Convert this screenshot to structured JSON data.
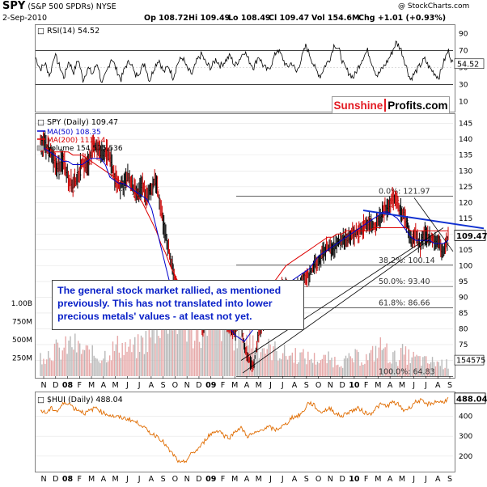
{
  "header": {
    "symbol": "SPY",
    "desc": "(S&P 500 SPDRs) NYSE",
    "date": "2-Sep-2010",
    "watermark": "@ StockCharts.com",
    "op": "Op 108.72",
    "hi": "Hi 109.49",
    "lo": "Lo 108.49",
    "cl": "Cl 109.47",
    "vol": "Vol 154.6M",
    "chg": "Chg +1.01 (+0.93%)"
  },
  "logo": {
    "part1": "Sunshine",
    "part2": "Profits.com"
  },
  "callout": {
    "line1": "The general stock market rallied, as mentioned",
    "line2": "previously. This has not translated into lower",
    "line3": "precious metals' values - at least not yet."
  },
  "colors": {
    "price_up": "#000000",
    "price_down": "#cc0000",
    "ma50": "#0000cc",
    "ma200": "#dd0000",
    "volume": "#e8b0b0",
    "hui": "#e06c00",
    "trend_blue": "#1030d0"
  },
  "chart_data": [
    {
      "type": "line",
      "name": "rsi_panel",
      "title": "RSI(14) 54.52",
      "last_value_label": "54.52",
      "y_ticks": [
        10,
        30,
        50,
        70,
        90
      ],
      "ylim": [
        0,
        100
      ],
      "guide_lines": [
        30,
        70
      ],
      "x_count": 460,
      "series": [
        {
          "name": "RSI(14)",
          "values": [
            62,
            48,
            55,
            40,
            66,
            52,
            38,
            58,
            44,
            60,
            35,
            50,
            42,
            56,
            30,
            45,
            62,
            48,
            36,
            52,
            58,
            40,
            46,
            55,
            34,
            50,
            60,
            44,
            52,
            38,
            56,
            62,
            48,
            42,
            58,
            66,
            54,
            50,
            60,
            52,
            58,
            64,
            52,
            60,
            70,
            58,
            50,
            64,
            52,
            46,
            58,
            72,
            62,
            50,
            56,
            44,
            60,
            76,
            62,
            48,
            40,
            52,
            60,
            78,
            70,
            52,
            44,
            38,
            50,
            62,
            70,
            54,
            40,
            48,
            56,
            66,
            80,
            72,
            54,
            36,
            44,
            52,
            60,
            50,
            44,
            38,
            56,
            70,
            54
          ]
        }
      ]
    },
    {
      "type": "line",
      "name": "spy_panel",
      "title": "SPY (Daily) 109.47",
      "legend": [
        "MA(50) 108.35",
        "MA(200) 111.14",
        "Volume 154,575,536"
      ],
      "last_price_label": "109.47",
      "y_ticks": [
        70,
        75,
        80,
        85,
        90,
        95,
        100,
        105,
        110,
        115,
        120,
        125,
        130,
        135,
        140,
        145
      ],
      "ylim": [
        65,
        148
      ],
      "volume_ticks": [
        "250M",
        "500M",
        "750M",
        "1.00B"
      ],
      "volume_last_label": "154575",
      "fib_levels": [
        {
          "label": "0.0%: 121.97",
          "value": 121.97
        },
        {
          "label": "38.2%: 100.14",
          "value": 100.14
        },
        {
          "label": "50.0%: 93.40",
          "value": 93.4
        },
        {
          "label": "61.8%: 86.66",
          "value": 86.66
        },
        {
          "label": "100.0%: 64.83",
          "value": 64.83
        }
      ],
      "x_labels": [
        "N",
        "D",
        "08",
        "F",
        "M",
        "A",
        "M",
        "J",
        "J",
        "A",
        "S",
        "O",
        "N",
        "D",
        "09",
        "F",
        "M",
        "A",
        "M",
        "J",
        "J",
        "A",
        "S",
        "O",
        "N",
        "D",
        "10",
        "F",
        "M",
        "A",
        "M",
        "J",
        "J",
        "A",
        "S"
      ],
      "close": [
        140,
        138,
        136,
        132,
        131,
        134,
        128,
        125,
        128,
        133,
        131,
        136,
        138,
        135,
        136,
        134,
        128,
        125,
        126,
        128,
        124,
        122,
        126,
        121,
        125,
        127,
        117,
        110,
        103,
        96,
        90,
        86,
        85,
        90,
        82,
        80,
        84,
        87,
        90,
        88,
        82,
        80,
        78,
        85,
        74,
        70,
        68,
        78,
        82,
        84,
        86,
        90,
        93,
        94,
        92,
        93,
        94,
        96,
        97,
        100,
        101,
        104,
        106,
        105,
        107,
        108,
        109,
        110,
        110,
        111,
        113,
        114,
        112,
        115,
        117,
        119,
        121,
        120,
        117,
        114,
        108,
        110,
        106,
        110,
        109,
        108,
        107,
        104,
        109
      ],
      "ma50": [
        138,
        137,
        136,
        135,
        134,
        133,
        133,
        132,
        132,
        132,
        133,
        134,
        134,
        134,
        132,
        128,
        127,
        126,
        126,
        125,
        124,
        123,
        122,
        121,
        118,
        112,
        106,
        100,
        94,
        89,
        87,
        86,
        86,
        86,
        85,
        84,
        84,
        84,
        84,
        83,
        82,
        80,
        78,
        77,
        76,
        78,
        80,
        84,
        88,
        90,
        92,
        93,
        94,
        94,
        95,
        96,
        97,
        98,
        99,
        101,
        103,
        104,
        105,
        106,
        107,
        108,
        109,
        110,
        111,
        112,
        113,
        114,
        115,
        116,
        117,
        117,
        116,
        115,
        113,
        111,
        109,
        108,
        108,
        108,
        108,
        107,
        107,
        107,
        108
      ],
      "ma200": [
        136,
        137,
        137,
        136,
        136,
        136,
        136,
        135,
        135,
        135,
        134,
        133,
        132,
        131,
        130,
        129,
        128,
        127,
        126,
        125,
        124,
        122,
        120,
        117,
        114,
        111,
        107,
        104,
        100,
        97,
        94,
        91,
        89,
        87,
        86,
        85,
        84,
        84,
        83,
        83,
        82,
        82,
        82,
        83,
        84,
        85,
        86,
        88,
        90,
        92,
        94,
        96,
        98,
        100,
        101,
        102,
        103,
        104,
        105,
        106,
        107,
        108,
        109,
        109,
        110,
        110,
        111,
        111,
        111,
        111,
        111,
        111,
        112,
        112,
        112,
        112,
        112,
        112,
        112,
        112,
        111,
        111,
        111,
        111,
        111,
        111,
        111,
        111,
        111
      ],
      "volume": [
        280,
        300,
        320,
        380,
        330,
        360,
        420,
        450,
        380,
        350,
        330,
        300,
        280,
        260,
        300,
        340,
        380,
        420,
        400,
        380,
        360,
        400,
        460,
        500,
        560,
        700,
        820,
        900,
        880,
        800,
        760,
        720,
        650,
        600,
        640,
        700,
        820,
        900,
        860,
        760,
        700,
        640,
        600,
        560,
        580,
        520,
        480,
        440,
        400,
        380,
        360,
        340,
        320,
        300,
        280,
        300,
        280,
        260,
        250,
        240,
        230,
        220,
        240,
        220,
        210,
        200,
        210,
        230,
        260,
        250,
        240,
        260,
        320,
        380,
        420,
        300,
        260,
        240,
        320,
        280,
        260,
        240,
        220,
        200,
        190,
        200,
        180,
        170,
        160
      ]
    },
    {
      "type": "line",
      "name": "hui_panel",
      "title": "$HUI (Daily) 488.04",
      "last_value_label": "488.04",
      "y_ticks": [
        200,
        300,
        400
      ],
      "ylim": [
        130,
        520
      ],
      "x_labels": [
        "N",
        "D",
        "08",
        "F",
        "M",
        "A",
        "M",
        "J",
        "J",
        "A",
        "S",
        "O",
        "N",
        "D",
        "09",
        "F",
        "M",
        "A",
        "M",
        "J",
        "J",
        "A",
        "S",
        "O",
        "N",
        "D",
        "10",
        "F",
        "M",
        "A",
        "M",
        "J",
        "J",
        "A",
        "S"
      ],
      "series": [
        {
          "name": "$HUI (Daily)",
          "values": [
            430,
            415,
            440,
            425,
            460,
            470,
            440,
            430,
            415,
            430,
            445,
            420,
            410,
            400,
            395,
            390,
            385,
            370,
            360,
            330,
            310,
            300,
            270,
            230,
            200,
            160,
            175,
            210,
            230,
            260,
            300,
            320,
            330,
            300,
            295,
            330,
            340,
            300,
            310,
            320,
            340,
            345,
            330,
            345,
            360,
            395,
            400,
            420,
            470,
            455,
            420,
            430,
            440,
            410,
            400,
            420,
            430,
            440,
            420,
            410,
            440,
            460,
            450,
            470,
            460,
            430,
            440,
            470,
            480,
            460,
            465,
            475,
            470,
            488
          ]
        }
      ]
    }
  ]
}
